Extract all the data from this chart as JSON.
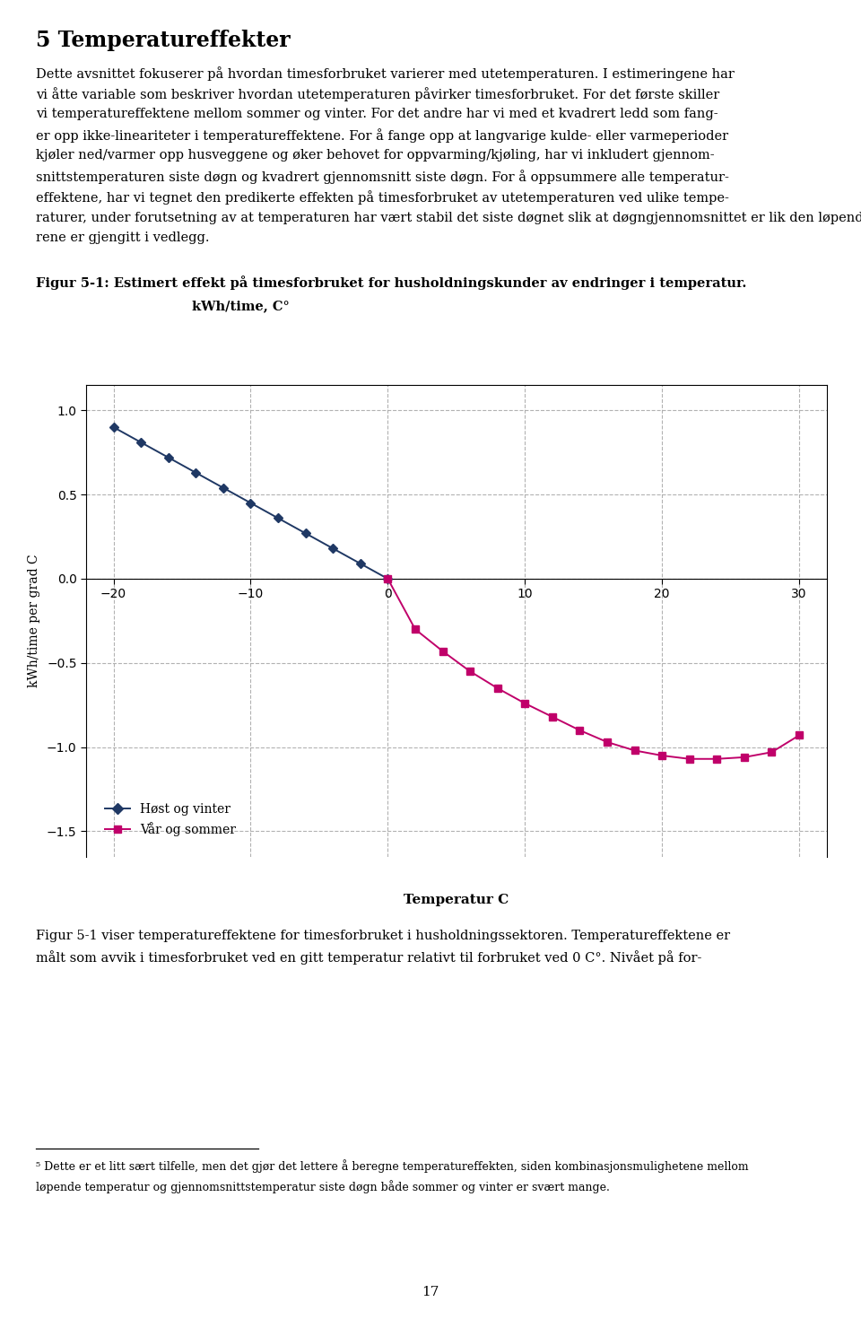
{
  "title_line1": "Figur 5-1: Estimert effekt på timesforbruket for husholdningskunder av endringer i temperatur.",
  "title_line2": "kWh/time, C°",
  "xlabel": "Temperatur C",
  "ylabel": "kWh/time per grad C",
  "page_title": "5 Temperatureffekter",
  "winter_x": [
    -20,
    -18,
    -16,
    -14,
    -12,
    -10,
    -8,
    -6,
    -4,
    -2,
    0
  ],
  "winter_y": [
    0.9,
    0.81,
    0.72,
    0.63,
    0.54,
    0.45,
    0.36,
    0.27,
    0.18,
    0.09,
    0.0
  ],
  "summer_x": [
    0,
    2,
    4,
    6,
    8,
    10,
    12,
    14,
    16,
    18,
    20,
    22,
    24,
    26,
    28,
    30
  ],
  "summer_y": [
    0.0,
    -0.3,
    -0.43,
    -0.55,
    -0.65,
    -0.74,
    -0.82,
    -0.9,
    -0.97,
    -1.02,
    -1.05,
    -1.07,
    -1.07,
    -1.06,
    -1.03,
    -0.93
  ],
  "winter_color": "#1F3864",
  "summer_color": "#C0006A",
  "xlim": [
    -22,
    32
  ],
  "ylim": [
    -1.65,
    1.15
  ],
  "yticks": [
    -1.5,
    -1.0,
    -0.5,
    0.0,
    0.5,
    1.0
  ],
  "xticks": [
    -20,
    -10,
    0,
    10,
    20,
    30
  ],
  "grid_color": "#AAAAAA",
  "background_color": "#FFFFFF",
  "legend_winter": "Høst og vinter",
  "legend_summer": "Vår og sommer",
  "page_number": "17"
}
